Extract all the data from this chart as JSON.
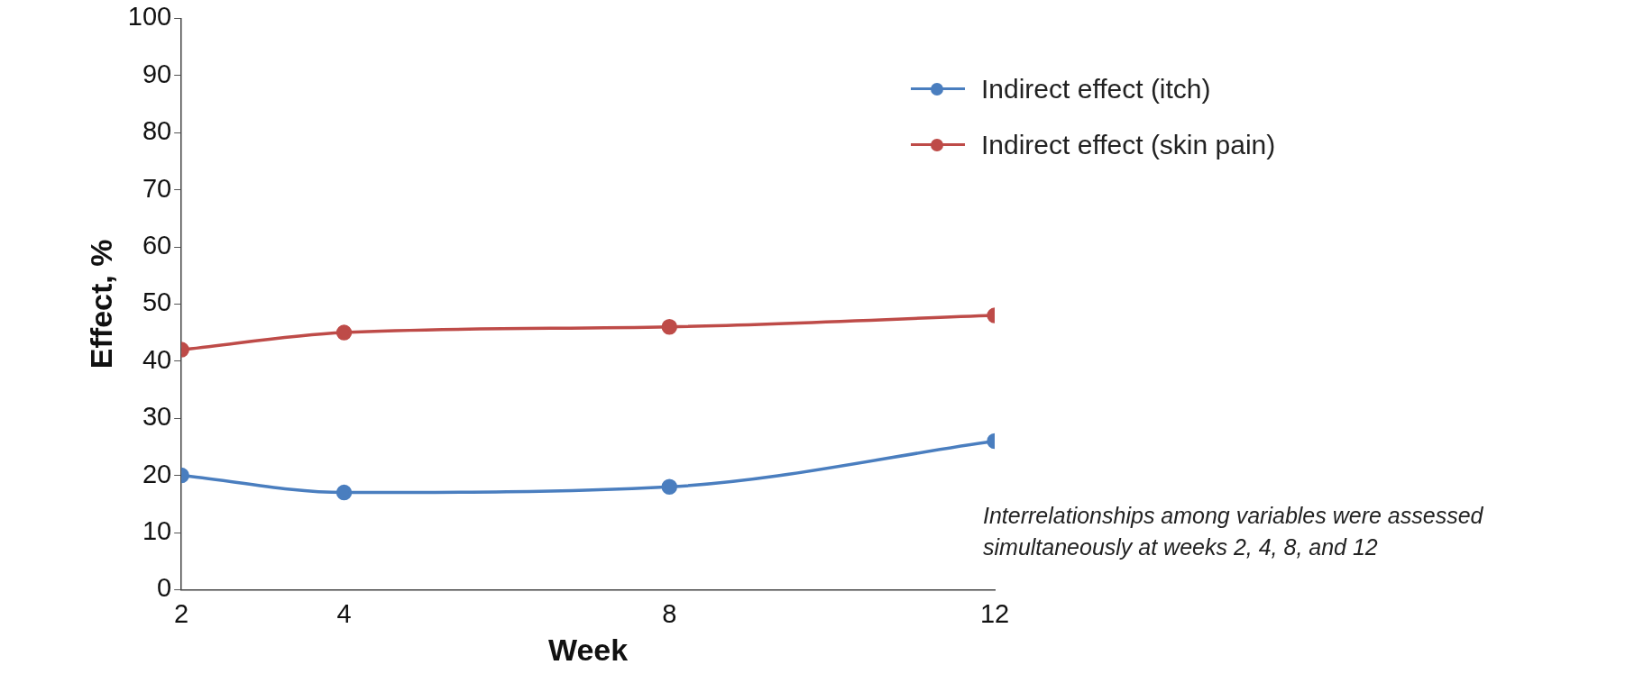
{
  "chart_data": {
    "type": "line",
    "xlabel": "Week",
    "ylabel": "Effect, %",
    "x": [
      2,
      4,
      8,
      12
    ],
    "series": [
      {
        "name": "Indirect effect (itch)",
        "color": "#4a7ebf",
        "values": [
          20,
          17,
          18,
          26
        ]
      },
      {
        "name": "Indirect effect (skin pain)",
        "color": "#be4b48",
        "values": [
          42,
          45,
          46,
          48
        ]
      }
    ],
    "xlim": [
      2,
      12
    ],
    "xticks": [
      2,
      4,
      8,
      12
    ],
    "ylim": [
      0,
      100
    ],
    "yticks": [
      0,
      10,
      20,
      30,
      40,
      50,
      60,
      70,
      80,
      90,
      100
    ],
    "grid": false,
    "legend": "top right",
    "marker": "circle",
    "line_style": "solid",
    "annotations": [
      "Interrelationships among variables were assessed simultaneously at weeks 2, 4, 8, and 12"
    ]
  }
}
